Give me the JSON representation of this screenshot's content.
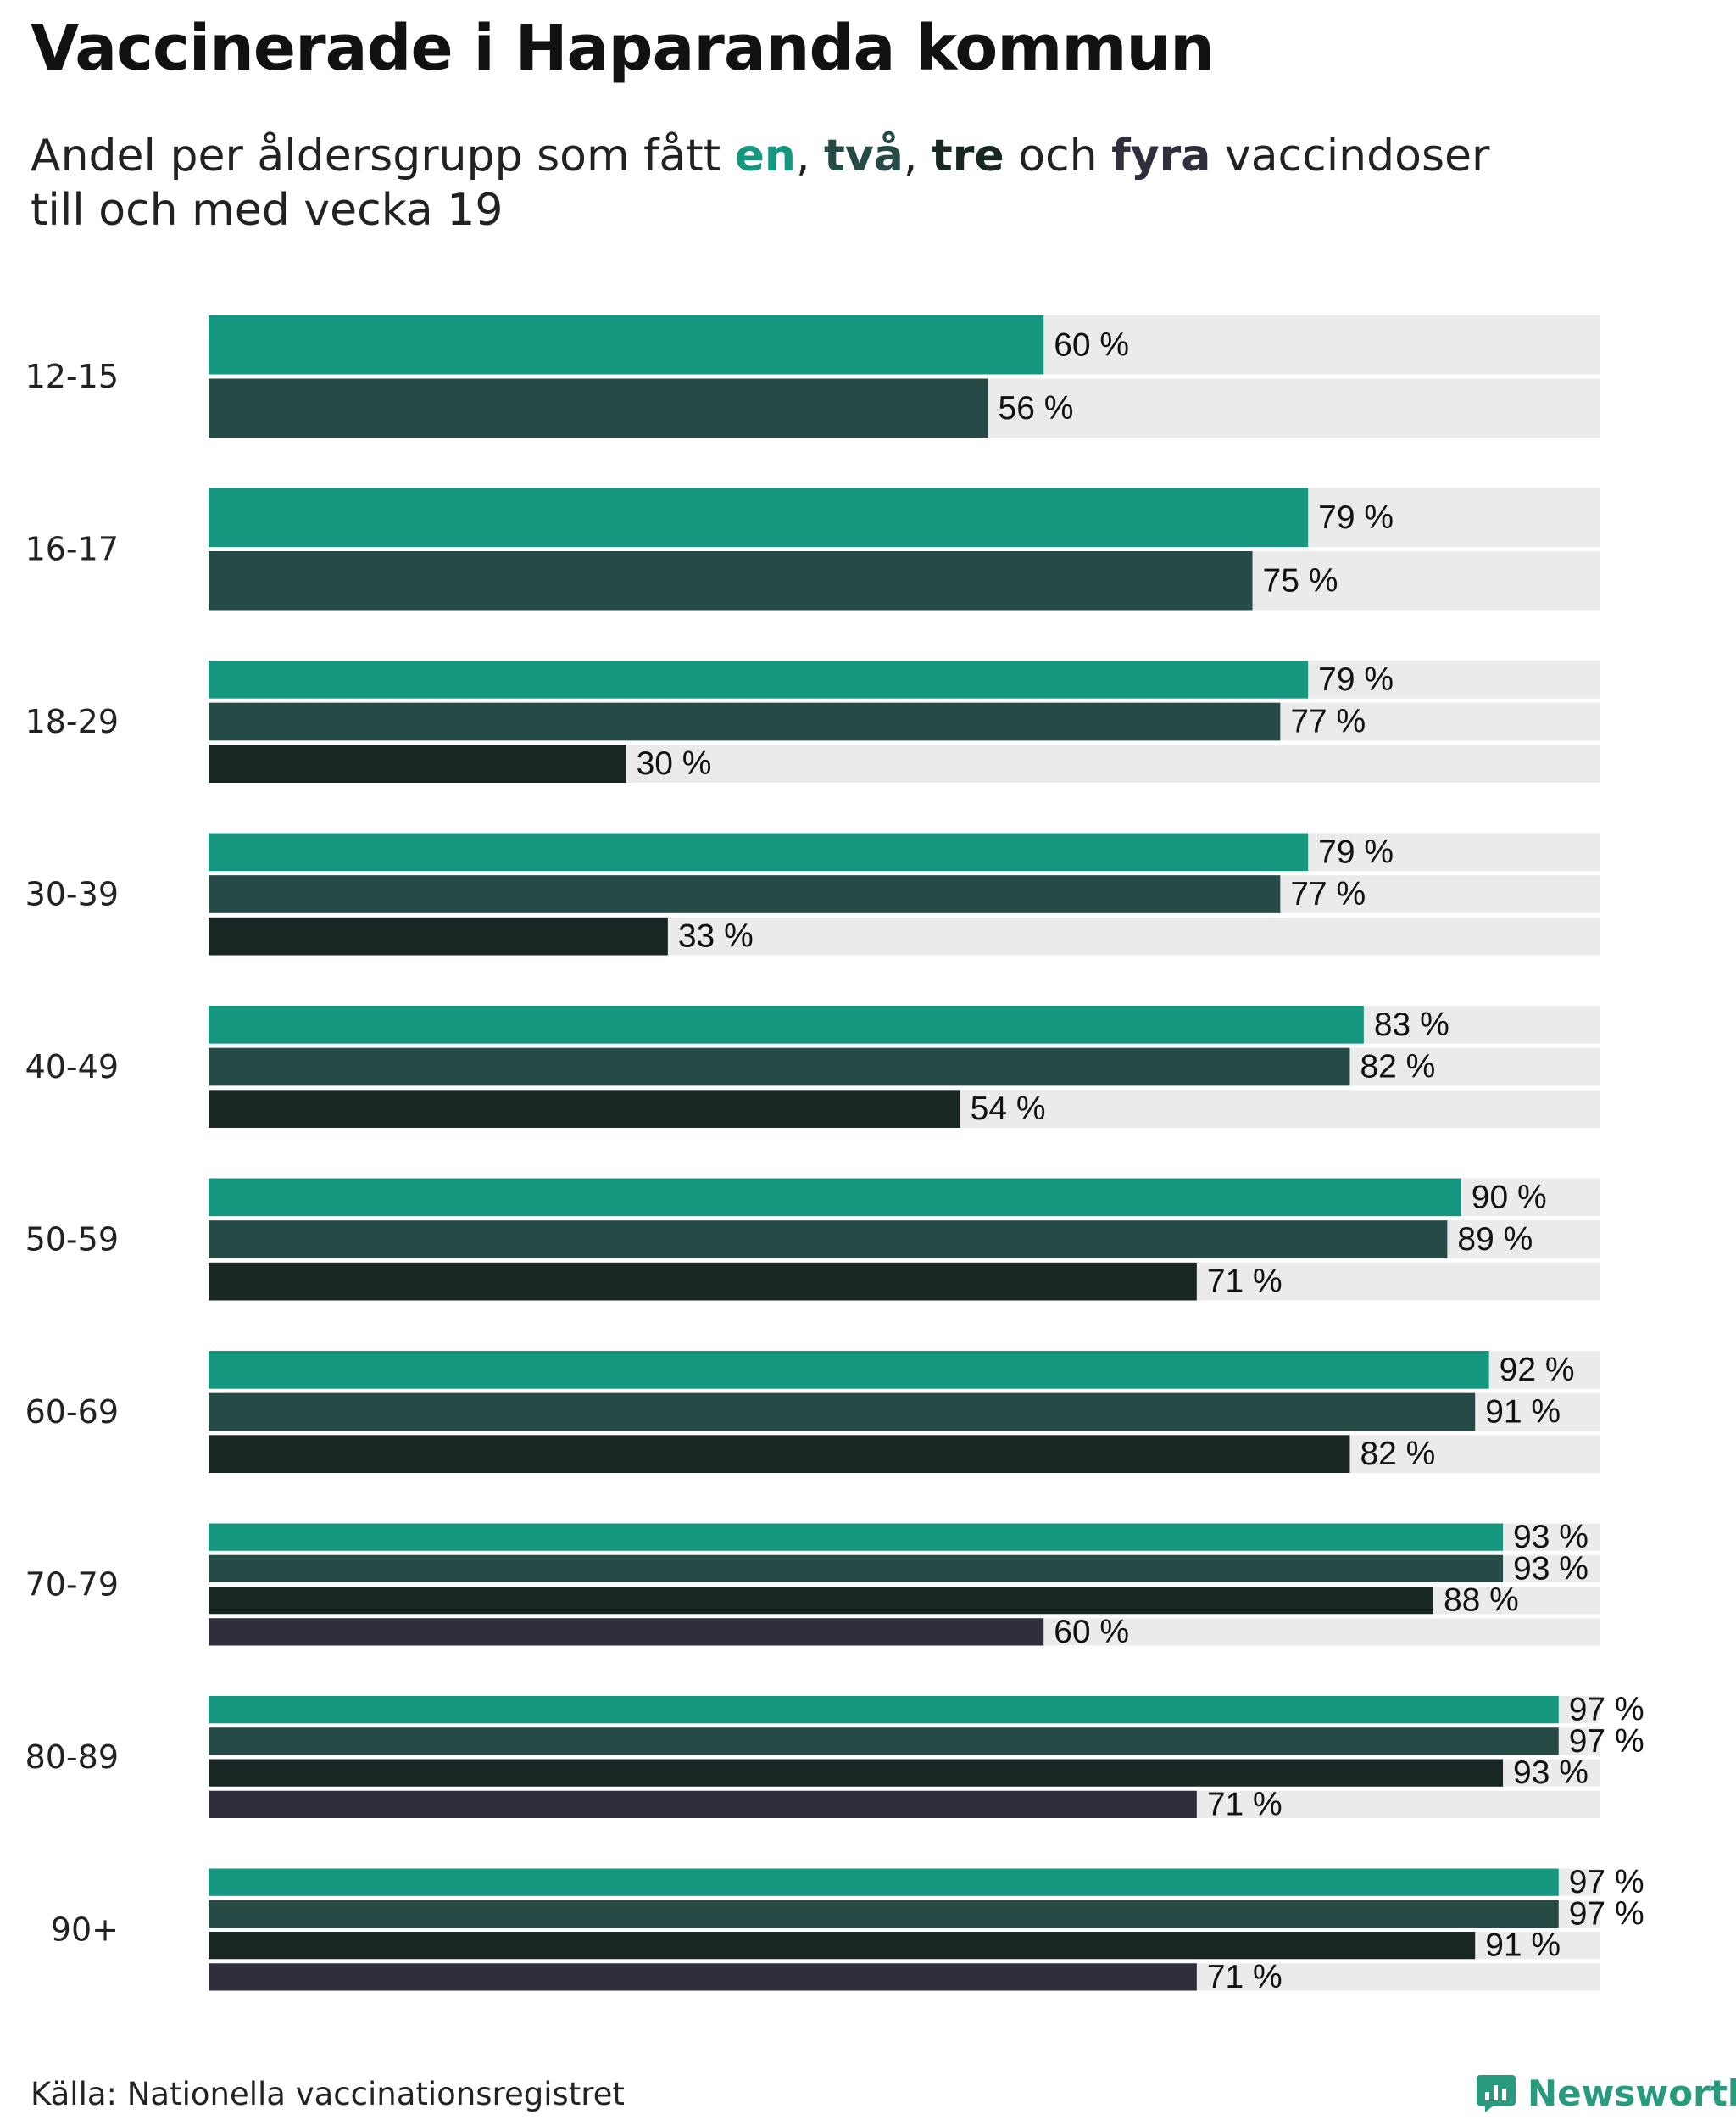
{
  "title": "Vaccinerade i Haparanda kommun",
  "subtitle": {
    "prefix": "Andel per åldersgrupp som fått ",
    "dose1": "en",
    "sep1": ", ",
    "dose2": "två",
    "sep2": ", ",
    "dose3": "tre",
    "conj": " och ",
    "dose4": "fyra",
    "suffix": " vaccindoser",
    "line2": "till och med vecka 19"
  },
  "source": "Källa: Nationella vaccinationsregistret",
  "brand": "Newsworthy",
  "colors": {
    "dose1": "#14967f",
    "dose2": "#264a45",
    "dose3": "#182624",
    "dose4": "#2f2e3c",
    "track": "#ebebeb",
    "brand": "#2a9a7e"
  },
  "chart_data": {
    "type": "bar",
    "orientation": "horizontal",
    "title": "Vaccinerade i Haparanda kommun",
    "unit": "%",
    "xlim": [
      0,
      100
    ],
    "categories": [
      "12-15",
      "16-17",
      "18-29",
      "30-39",
      "40-49",
      "50-59",
      "60-69",
      "70-79",
      "80-89",
      "90+"
    ],
    "series": [
      {
        "name": "en",
        "values": [
          60,
          79,
          79,
          79,
          83,
          90,
          92,
          93,
          97,
          97
        ]
      },
      {
        "name": "två",
        "values": [
          56,
          75,
          77,
          77,
          82,
          89,
          91,
          93,
          97,
          97
        ]
      },
      {
        "name": "tre",
        "values": [
          null,
          null,
          30,
          33,
          54,
          71,
          82,
          88,
          93,
          91
        ]
      },
      {
        "name": "fyra",
        "values": [
          null,
          null,
          null,
          null,
          null,
          null,
          null,
          60,
          71,
          71
        ]
      }
    ],
    "value_labels": [
      [
        "60 %",
        "56 %"
      ],
      [
        "79 %",
        "75 %"
      ],
      [
        "79 %",
        "77 %",
        "30 %"
      ],
      [
        "79 %",
        "77 %",
        "33 %"
      ],
      [
        "83 %",
        "82 %",
        "54 %"
      ],
      [
        "90 %",
        "89 %",
        "71 %"
      ],
      [
        "92 %",
        "91 %",
        "82 %"
      ],
      [
        "93 %",
        "93 %",
        "88 %",
        "60 %"
      ],
      [
        "97 %",
        "97 %",
        "93 %",
        "71 %"
      ],
      [
        "97 %",
        "97 %",
        "91 %",
        "71 %"
      ]
    ],
    "grid": false,
    "legend": "none"
  }
}
